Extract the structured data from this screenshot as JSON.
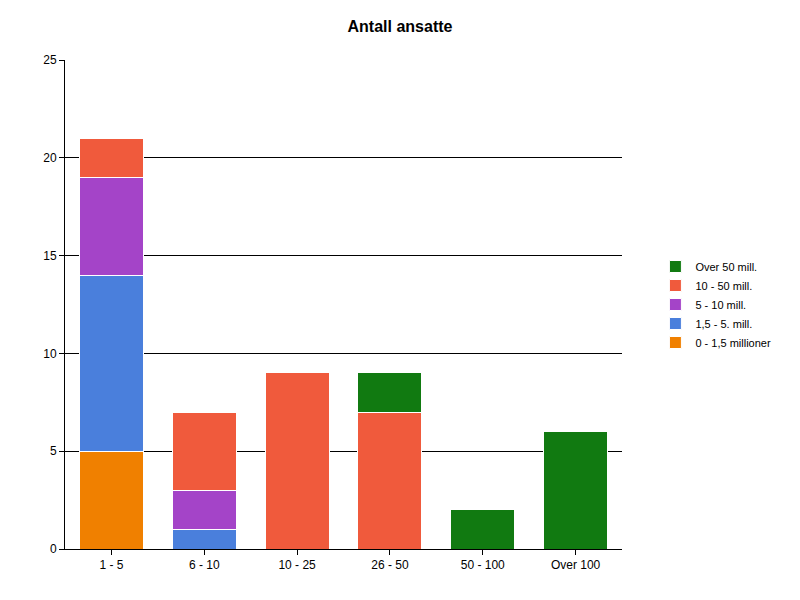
{
  "chart_data": {
    "type": "bar",
    "title": "Antall ansatte",
    "categories": [
      "1 - 5",
      "6 - 10",
      "10 - 25",
      "26 - 50",
      "50 - 100",
      "Over 100"
    ],
    "series": [
      {
        "name": "0 - 1,5 millioner",
        "color": "#f08000",
        "values": [
          5,
          0,
          0,
          0,
          0,
          0
        ]
      },
      {
        "name": "1,5 - 5. mill.",
        "color": "#4a7fdc",
        "values": [
          9,
          1,
          0,
          0,
          0,
          0
        ]
      },
      {
        "name": "5 - 10 mill.",
        "color": "#a444c8",
        "values": [
          5,
          2,
          0,
          0,
          0,
          0
        ]
      },
      {
        "name": "10 - 50 mill.",
        "color": "#f05a3c",
        "values": [
          2,
          4,
          9,
          7,
          0,
          0
        ]
      },
      {
        "name": "Over 50 mill.",
        "color": "#117a11",
        "values": [
          0,
          0,
          0,
          2,
          2,
          6
        ]
      }
    ],
    "stacked": true,
    "ylim": [
      0,
      25
    ],
    "yticks": [
      0,
      5,
      10,
      15,
      20,
      25
    ],
    "grid": true,
    "legend": "right"
  }
}
